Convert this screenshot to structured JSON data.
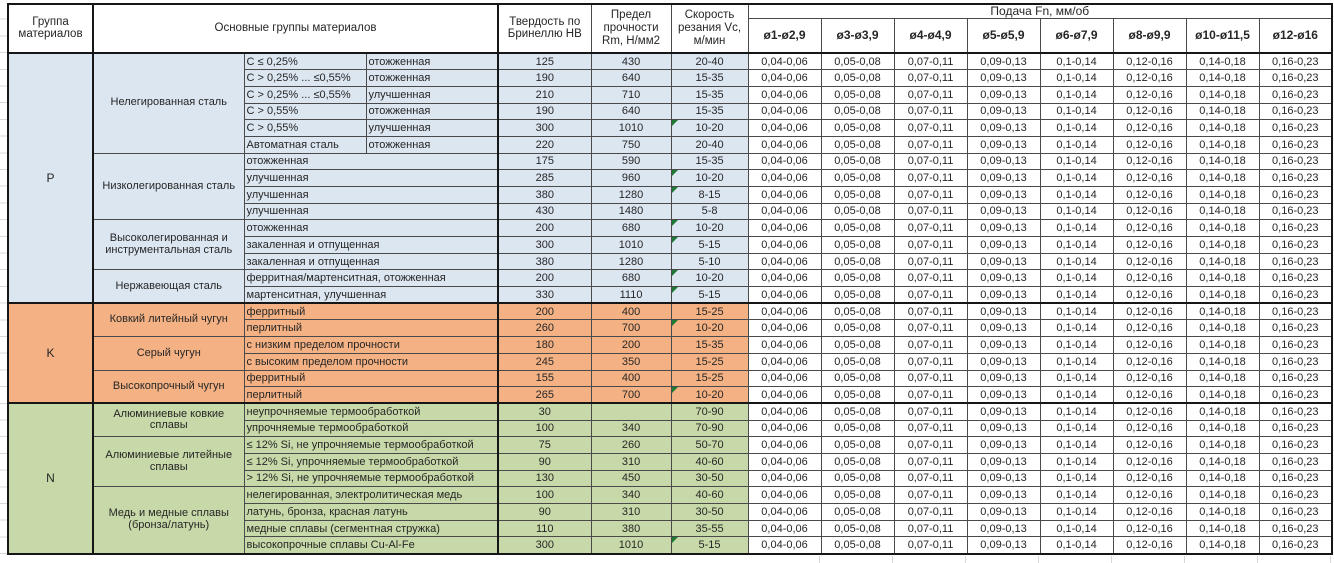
{
  "header": {
    "col_group": "Группа материалов",
    "col_main": "Основные группы материалов",
    "col_hb": "Твердость по Бринеллю HB",
    "col_rm": "Предел прочности Rm, Н/мм2",
    "col_vc": "Скорость резания Vc, м/мин",
    "feed_title": "Подача Fn, мм/об",
    "feed_cols": [
      "ø1-ø2,9",
      "ø3-ø3,9",
      "ø4-ø4,9",
      "ø5-ø5,9",
      "ø6-ø7,9",
      "ø8-ø9,9",
      "ø10-ø11,5",
      "ø12-ø16"
    ]
  },
  "feed_values": [
    "0,04-0,06",
    "0,05-0,08",
    "0,07-0,11",
    "0,09-0,13",
    "0,1-0,14",
    "0,12-0,16",
    "0,14-0,18",
    "0,16-0,23"
  ],
  "colors": {
    "group_p": "#dce6f1",
    "group_k": "#f4b183",
    "group_n": "#c7d9a8",
    "flag_triangle": "#1e7a34"
  },
  "groups": [
    {
      "code": "P",
      "color": "#dce6f1",
      "sections": [
        {
          "name": "Нелегированная сталь",
          "rows": [
            {
              "desc": "C ≤ 0,25%",
              "state": "отожженная",
              "hb": "125",
              "rm": "430",
              "vc": "20-40",
              "flag": false
            },
            {
              "desc": "C > 0,25% ... ≤0,55%",
              "state": "отожженная",
              "hb": "190",
              "rm": "640",
              "vc": "15-35",
              "flag": false
            },
            {
              "desc": "C > 0,25% ... ≤0,55%",
              "state": "улучшенная",
              "hb": "210",
              "rm": "710",
              "vc": "15-35",
              "flag": false
            },
            {
              "desc": "C > 0,55%",
              "state": "отожженная",
              "hb": "190",
              "rm": "640",
              "vc": "15-35",
              "flag": false
            },
            {
              "desc": "C > 0,55%",
              "state": "улучшенная",
              "hb": "300",
              "rm": "1010",
              "vc": "10-20",
              "flag": true
            },
            {
              "desc": "Автоматная сталь",
              "state": "отожженная",
              "hb": "220",
              "rm": "750",
              "vc": "20-40",
              "flag": false
            }
          ]
        },
        {
          "name": "Низколегированная сталь",
          "rows": [
            {
              "desc": "отожженная",
              "state": null,
              "hb": "175",
              "rm": "590",
              "vc": "15-35",
              "flag": false
            },
            {
              "desc": "улучшенная",
              "state": null,
              "hb": "285",
              "rm": "960",
              "vc": "10-20",
              "flag": true
            },
            {
              "desc": "улучшенная",
              "state": null,
              "hb": "380",
              "rm": "1280",
              "vc": "8-15",
              "flag": true
            },
            {
              "desc": "улучшенная",
              "state": null,
              "hb": "430",
              "rm": "1480",
              "vc": "5-8",
              "flag": false
            }
          ]
        },
        {
          "name": "Высоколегированная и инструментальная сталь",
          "rows": [
            {
              "desc": "отожженная",
              "state": null,
              "hb": "200",
              "rm": "680",
              "vc": "10-20",
              "flag": true
            },
            {
              "desc": "закаленная и отпущенная",
              "state": null,
              "hb": "300",
              "rm": "1010",
              "vc": "5-15",
              "flag": true
            },
            {
              "desc": "закаленная и отпущенная",
              "state": null,
              "hb": "380",
              "rm": "1280",
              "vc": "5-10",
              "flag": false
            }
          ]
        },
        {
          "name": "Нержавеющая сталь",
          "rows": [
            {
              "desc": "ферритная/мартенситная, отожженная",
              "state": null,
              "hb": "200",
              "rm": "680",
              "vc": "10-20",
              "flag": true
            },
            {
              "desc": "мартенситная, улучшенная",
              "state": null,
              "hb": "330",
              "rm": "1110",
              "vc": "5-15",
              "flag": true
            }
          ]
        }
      ]
    },
    {
      "code": "K",
      "color": "#f4b183",
      "sections": [
        {
          "name": "Ковкий литейный чугун",
          "rows": [
            {
              "desc": "ферритный",
              "state": null,
              "hb": "200",
              "rm": "400",
              "vc": "15-25",
              "flag": false
            },
            {
              "desc": "перлитный",
              "state": null,
              "hb": "260",
              "rm": "700",
              "vc": "10-20",
              "flag": true
            }
          ]
        },
        {
          "name": "Серый чугун",
          "rows": [
            {
              "desc": "с низким пределом прочности",
              "state": null,
              "hb": "180",
              "rm": "200",
              "vc": "15-35",
              "flag": false
            },
            {
              "desc": "с высоким пределом прочности",
              "state": null,
              "hb": "245",
              "rm": "350",
              "vc": "15-25",
              "flag": false
            }
          ]
        },
        {
          "name": "Высокопрочный чугун",
          "rows": [
            {
              "desc": "ферритный",
              "state": null,
              "hb": "155",
              "rm": "400",
              "vc": "15-25",
              "flag": false
            },
            {
              "desc": "перлитный",
              "state": null,
              "hb": "265",
              "rm": "700",
              "vc": "10-20",
              "flag": true
            }
          ]
        }
      ]
    },
    {
      "code": "N",
      "color": "#c7d9a8",
      "sections": [
        {
          "name": "Алюминиевые ковкие сплавы",
          "rows": [
            {
              "desc": "неупрочняемые термообработкой",
              "state": null,
              "hb": "30",
              "rm": "",
              "vc": "70-90",
              "flag": false
            },
            {
              "desc": "упрочняемые термообработкой",
              "state": null,
              "hb": "100",
              "rm": "340",
              "vc": "70-90",
              "flag": false
            }
          ]
        },
        {
          "name": "Алюминиевые литейные сплавы",
          "rows": [
            {
              "desc": "≤ 12% Si, не упрочняемые термообработкой",
              "state": null,
              "hb": "75",
              "rm": "260",
              "vc": "50-70",
              "flag": false
            },
            {
              "desc": "≤ 12% Si, упрочняемые термообработкой",
              "state": null,
              "hb": "90",
              "rm": "310",
              "vc": "40-60",
              "flag": false
            },
            {
              "desc": "> 12% Si, не упрочняемые термообработкой",
              "state": null,
              "hb": "130",
              "rm": "450",
              "vc": "30-50",
              "flag": false
            }
          ]
        },
        {
          "name": "Медь и медные сплавы (бронза/латунь)",
          "rows": [
            {
              "desc": "нелегированная, электролитическая медь",
              "state": null,
              "hb": "100",
              "rm": "340",
              "vc": "40-60",
              "flag": false
            },
            {
              "desc": "латунь, бронза, красная латунь",
              "state": null,
              "hb": "90",
              "rm": "310",
              "vc": "30-50",
              "flag": false
            },
            {
              "desc": "медные сплавы (сегментная стружка)",
              "state": null,
              "hb": "110",
              "rm": "380",
              "vc": "35-55",
              "flag": false
            },
            {
              "desc": "высокопрочные сплавы Cu-Al-Fe",
              "state": null,
              "hb": "300",
              "rm": "1010",
              "vc": "5-15",
              "flag": true
            }
          ]
        }
      ]
    }
  ]
}
